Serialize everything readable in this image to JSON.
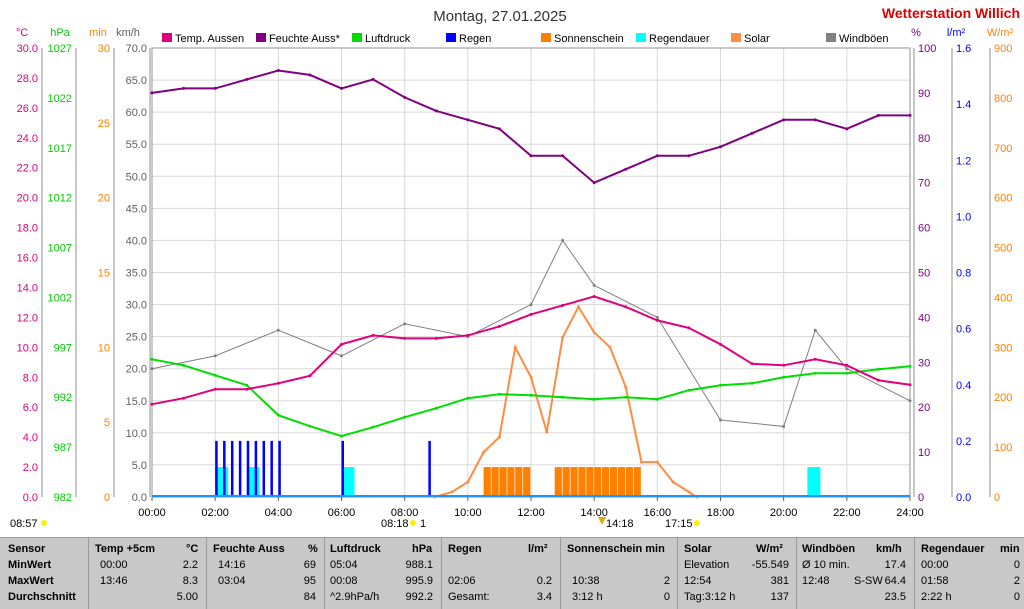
{
  "header": {
    "title": "Montag, 27.01.2025",
    "station": "Wetterstation Willich"
  },
  "legend": [
    {
      "label": "Temp. Aussen",
      "color": "#e0007c"
    },
    {
      "label": "Feuchte Auss*",
      "color": "#800080"
    },
    {
      "label": "Luftdruck",
      "color": "#00dd00"
    },
    {
      "label": "Regen",
      "color": "#0000ff"
    },
    {
      "label": "Sonnenschein",
      "color": "#ff8000"
    },
    {
      "label": "Regendauer",
      "color": "#00ffff"
    },
    {
      "label": "Solar",
      "color": "#ff8c40"
    },
    {
      "label": "Windböen",
      "color": "#808080"
    }
  ],
  "axes": {
    "temp": {
      "unit": "°C",
      "color": "#e0007c",
      "ticks": [
        "30.0",
        "28.0",
        "26.0",
        "24.0",
        "22.0",
        "20.0",
        "18.0",
        "16.0",
        "14.0",
        "12.0",
        "10.0",
        "8.0",
        "6.0",
        "4.0",
        "2.0",
        "0.0"
      ]
    },
    "press": {
      "unit": "hPa",
      "color": "#00cc00",
      "ticks": [
        "1027",
        "1022",
        "1017",
        "1012",
        "1007",
        "1002",
        "997",
        "992",
        "987",
        "982"
      ]
    },
    "min": {
      "unit": "min",
      "color": "#ff8000",
      "ticks": [
        "30",
        "25",
        "20",
        "15",
        "10",
        "5",
        "0"
      ]
    },
    "wind": {
      "unit": "km/h",
      "color": "#606060",
      "ticks": [
        "70.0",
        "65.0",
        "60.0",
        "55.0",
        "50.0",
        "45.0",
        "40.0",
        "35.0",
        "30.0",
        "25.0",
        "20.0",
        "15.0",
        "10.0",
        "5.0",
        "0.0"
      ]
    },
    "hum": {
      "unit": "%",
      "color": "#800080",
      "ticks": [
        "100",
        "90",
        "80",
        "70",
        "60",
        "50",
        "40",
        "30",
        "20",
        "10",
        "0"
      ]
    },
    "rain": {
      "unit": "l/m²",
      "color": "#0000ff",
      "ticks": [
        "1.6",
        "1.4",
        "1.2",
        "1.0",
        "0.8",
        "0.6",
        "0.4",
        "0.2",
        "0.0"
      ]
    },
    "solar": {
      "unit": "W/m²",
      "color": "#ff8000",
      "ticks": [
        "900",
        "800",
        "700",
        "600",
        "500",
        "400",
        "300",
        "200",
        "100",
        "0"
      ]
    }
  },
  "time_axis": {
    "labels": [
      "00:00",
      "02:00",
      "04:00",
      "06:00",
      "08:00",
      "10:00",
      "12:00",
      "14:00",
      "16:00",
      "18:00",
      "20:00",
      "22:00",
      "24:00"
    ]
  },
  "markers": {
    "sunrise": "08:57",
    "moonrise": "08:18",
    "moonrise_suffix": "1",
    "noon": "14:18",
    "sunset": "17:15"
  },
  "chart_data": {
    "type": "line",
    "x_label": "",
    "x_range": [
      "00:00",
      "24:00"
    ],
    "series": [
      {
        "name": "Temp. Aussen",
        "unit": "°C",
        "color": "#e0007c",
        "x": [
          "00:00",
          "01:00",
          "02:00",
          "03:00",
          "04:00",
          "05:00",
          "06:00",
          "07:00",
          "08:00",
          "09:00",
          "10:00",
          "11:00",
          "12:00",
          "13:00",
          "14:00",
          "15:00",
          "16:00",
          "17:00",
          "18:00",
          "19:00",
          "20:00",
          "21:00",
          "22:00",
          "23:00",
          "24:00"
        ],
        "values": [
          6.2,
          6.6,
          7.2,
          7.2,
          7.6,
          8.1,
          10.2,
          10.8,
          10.6,
          10.6,
          10.8,
          11.4,
          12.2,
          12.8,
          13.4,
          12.7,
          11.8,
          11.3,
          10.2,
          8.9,
          8.8,
          9.2,
          8.8,
          7.8,
          7.5
        ]
      },
      {
        "name": "Feuchte Auss*",
        "unit": "%",
        "color": "#800080",
        "x": [
          "00:00",
          "01:00",
          "02:00",
          "03:00",
          "04:00",
          "05:00",
          "06:00",
          "07:00",
          "08:00",
          "09:00",
          "10:00",
          "11:00",
          "12:00",
          "13:00",
          "14:00",
          "15:00",
          "16:00",
          "17:00",
          "18:00",
          "19:00",
          "20:00",
          "21:00",
          "22:00",
          "23:00",
          "24:00"
        ],
        "values": [
          90,
          91,
          91,
          93,
          95,
          94,
          91,
          93,
          89,
          86,
          84,
          82,
          76,
          76,
          70,
          73,
          76,
          76,
          78,
          81,
          84,
          84,
          82,
          85,
          85
        ]
      },
      {
        "name": "Luftdruck",
        "unit": "hPa",
        "color": "#00dd00",
        "x": [
          "00:00",
          "01:00",
          "02:00",
          "03:00",
          "04:00",
          "05:00",
          "06:00",
          "07:00",
          "08:00",
          "09:00",
          "10:00",
          "11:00",
          "12:00",
          "13:00",
          "14:00",
          "15:00",
          "16:00",
          "17:00",
          "18:00",
          "19:00",
          "20:00",
          "21:00",
          "22:00",
          "23:00",
          "24:00"
        ],
        "values": [
          995.8,
          995.2,
          994.2,
          993.2,
          990.2,
          989.1,
          988.1,
          989.0,
          990.0,
          990.9,
          991.9,
          992.3,
          992.2,
          992.0,
          991.8,
          992.0,
          991.8,
          992.7,
          993.2,
          993.4,
          994.0,
          994.4,
          994.4,
          994.8,
          995.1
        ]
      },
      {
        "name": "Windböen",
        "unit": "km/h",
        "color": "#808080",
        "x": [
          "00:00",
          "02:00",
          "04:00",
          "06:00",
          "08:00",
          "10:00",
          "12:00",
          "13:00",
          "14:00",
          "16:00",
          "18:00",
          "20:00",
          "21:00",
          "22:00",
          "24:00"
        ],
        "values": [
          20,
          22,
          26,
          22,
          27,
          25,
          30,
          40,
          33,
          28,
          12,
          11,
          26,
          20,
          15
        ]
      },
      {
        "name": "Regen",
        "unit": "l/m²",
        "color": "#0000ff",
        "x": [
          "02:00",
          "02:15",
          "02:30",
          "02:45",
          "03:00",
          "03:15",
          "03:30",
          "03:45",
          "04:00",
          "06:00",
          "08:45"
        ],
        "values": [
          0.2,
          0.2,
          0.2,
          0.2,
          0.2,
          0.2,
          0.2,
          0.2,
          0.2,
          0.2,
          0.2
        ]
      },
      {
        "name": "Sonnenschein",
        "unit": "min",
        "color": "#ff8000",
        "x": [
          "10:30",
          "10:45",
          "11:00",
          "11:15",
          "11:30",
          "11:45",
          "12:45",
          "13:00",
          "13:15",
          "13:30",
          "13:45",
          "14:00",
          "14:15",
          "14:30",
          "14:45",
          "15:00",
          "15:15"
        ],
        "values": [
          2,
          2,
          2,
          2,
          2,
          2,
          2,
          2,
          2,
          2,
          2,
          2,
          2,
          2,
          2,
          2,
          2
        ]
      },
      {
        "name": "Regendauer",
        "unit": "min",
        "color": "#00ffff",
        "x": [
          "02:00",
          "03:00",
          "06:00",
          "20:45"
        ],
        "values": [
          2,
          2,
          2,
          2
        ]
      },
      {
        "name": "Solar",
        "unit": "W/m²",
        "color": "#ff8c40",
        "x": [
          "08:57",
          "09:30",
          "10:00",
          "10:30",
          "11:00",
          "11:30",
          "12:00",
          "12:30",
          "13:00",
          "13:30",
          "14:00",
          "14:30",
          "15:00",
          "15:30",
          "16:00",
          "16:30",
          "17:00",
          "17:15"
        ],
        "values": [
          0,
          10,
          30,
          90,
          120,
          300,
          240,
          130,
          320,
          381,
          330,
          300,
          220,
          70,
          70,
          30,
          10,
          0
        ]
      }
    ]
  },
  "summary": {
    "headers": {
      "sensor": "Sensor",
      "temp": "Temp +5cm",
      "temp_unit": "°C",
      "hum": "Feuchte Auss",
      "hum_unit": "%",
      "press": "Luftdruck",
      "press_unit": "hPa",
      "rain": "Regen",
      "rain_unit": "l/m²",
      "sun": "Sonnenschein min",
      "solar": "Solar",
      "solar_unit": "W/m²",
      "wind": "Windböen",
      "wind_unit": "km/h",
      "dur": "Regendauer",
      "dur_unit": "min"
    },
    "rows": [
      {
        "label": "MinWert",
        "temp_t": "00:00",
        "temp_v": "2.2",
        "hum_t": "14:16",
        "hum_v": "69",
        "press_t": "05:04",
        "press_v": "988.1",
        "rain_t": "",
        "rain_v": "",
        "sun_t": "",
        "sun_v": "",
        "solar_t": "Elevation",
        "solar_v": "-55.549",
        "wind_t": "Ø 10 min.",
        "wind_m": "",
        "wind_v": "17.4",
        "dur_t": "00:00",
        "dur_v": "0"
      },
      {
        "label": "MaxWert",
        "temp_t": "13:46",
        "temp_v": "8.3",
        "hum_t": "03:04",
        "hum_v": "95",
        "press_t": "00:08",
        "press_v": "995.9",
        "rain_t": "02:06",
        "rain_v": "0.2",
        "sun_t": "10:38",
        "sun_v": "2",
        "solar_t": "12:54",
        "solar_v": "381",
        "wind_t": "12:48",
        "wind_m": "S-SW",
        "wind_v": "64.4",
        "dur_t": "01:58",
        "dur_v": "2"
      },
      {
        "label": "Durchschnitt",
        "temp_t": "",
        "temp_v": "5.00",
        "hum_t": "",
        "hum_v": "84",
        "press_t": "^2.9hPa/h",
        "press_v": "992.2",
        "rain_t": "Gesamt:",
        "rain_v": "3.4",
        "sun_t": "3:12 h",
        "sun_v": "0",
        "solar_t": "Tag:3:12 h",
        "solar_v": "137",
        "wind_t": "",
        "wind_m": "",
        "wind_v": "23.5",
        "dur_t": "2:22 h",
        "dur_v": "0"
      }
    ]
  }
}
